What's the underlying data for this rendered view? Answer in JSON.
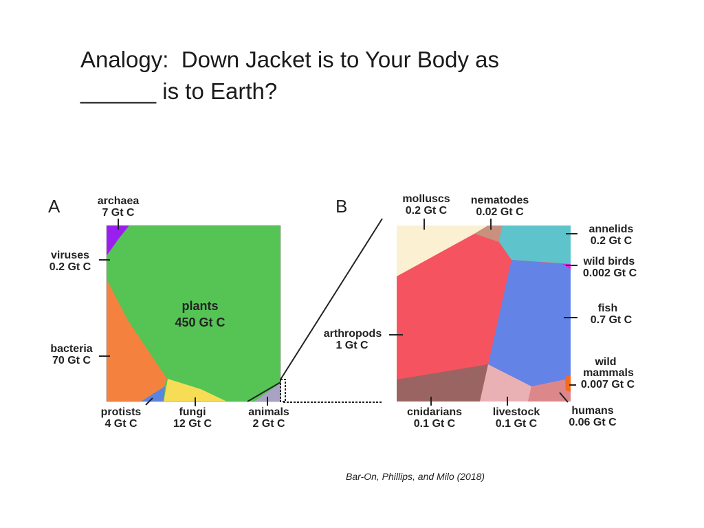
{
  "slide": {
    "title_line1": "Analogy:  Down Jacket is to Your Body as",
    "title_line2": "______ is to Earth?",
    "citation": "Bar-On, Phillips, and Milo (2018)"
  },
  "panel_a": {
    "letter": "A",
    "archaea": [
      "archaea",
      "7 Gt C"
    ],
    "viruses": [
      "viruses",
      "0.2 Gt C"
    ],
    "bacteria": [
      "bacteria",
      "70 Gt C"
    ],
    "plants": [
      "plants",
      "450 Gt C"
    ],
    "protists": [
      "protists",
      "4 Gt C"
    ],
    "fungi": [
      "fungi",
      "12 Gt C"
    ],
    "animals": [
      "animals",
      "2 Gt C"
    ]
  },
  "panel_b": {
    "letter": "B",
    "molluscs": [
      "molluscs",
      "0.2 Gt C"
    ],
    "nematodes": [
      "nematodes",
      "0.02 Gt C"
    ],
    "annelids": [
      "annelids",
      "0.2 Gt C"
    ],
    "wild_birds": [
      "wild birds",
      "0.002 Gt C"
    ],
    "fish": [
      "fish",
      "0.7 Gt C"
    ],
    "arthropods": [
      "arthropods",
      "1 Gt C"
    ],
    "wild_mammals": [
      "wild",
      "mammals",
      "0.007 Gt C"
    ],
    "cnidarians": [
      "cnidarians",
      "0.1 Gt C"
    ],
    "livestock": [
      "livestock",
      "0.1 Gt C"
    ],
    "humans": [
      "humans",
      "0.06 Gt C"
    ]
  },
  "colors": {
    "plants": "#55c455",
    "archaea": "#9a1ef0",
    "bacteria": "#f5813f",
    "protists": "#5b83e0",
    "fungi": "#f7dd55",
    "animals": "#a9a2c4",
    "molluscs": "#fbf0d2",
    "nematodes": "#c8907e",
    "annelids": "#5ec3cb",
    "wild_birds": "#e020e0",
    "fish": "#6483e6",
    "arthropods": "#f55360",
    "wild_mammals": "#f56a1e",
    "cnidarians": "#9a6462",
    "livestock": "#eab1b4",
    "humans": "#dc888b"
  }
}
